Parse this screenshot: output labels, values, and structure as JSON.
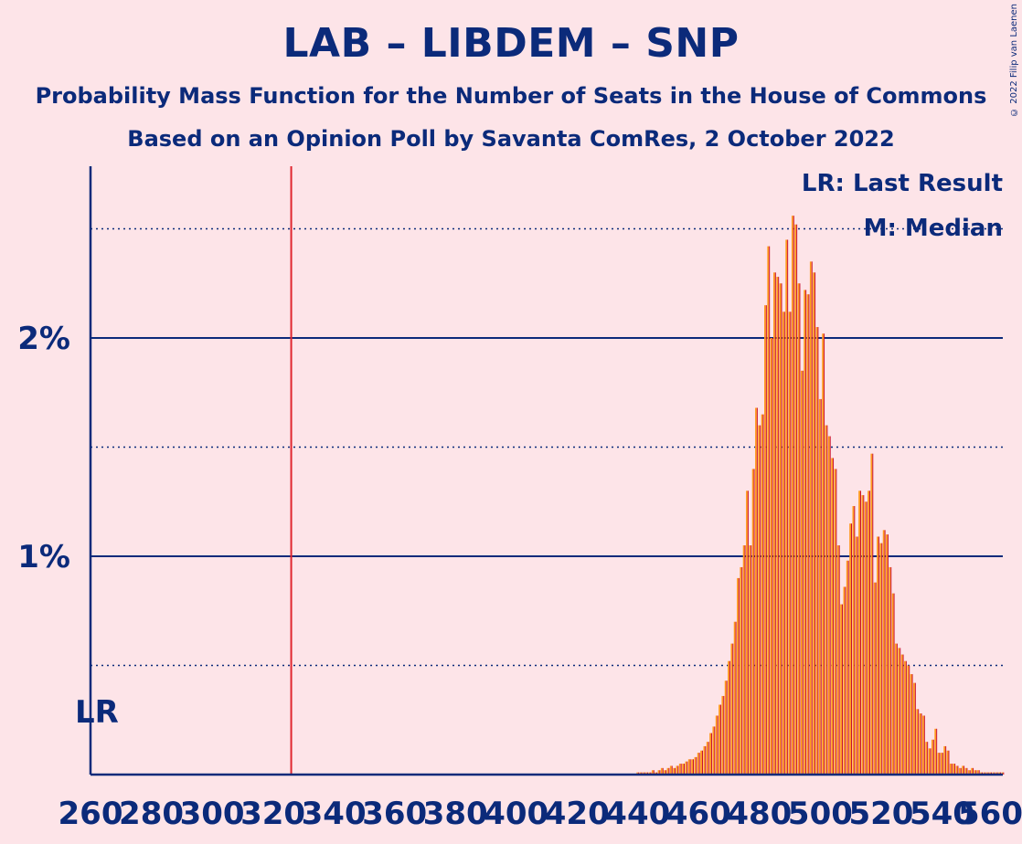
{
  "title": "LAB – LIBDEM – SNP",
  "subtitle": "Probability Mass Function for the Number of Seats in the House of Commons",
  "subtitle2": "Based on an Opinion Poll by Savanta ComRes, 2 October 2022",
  "copyright": "© 2022 Filip van Laenen",
  "colors": {
    "background": "#fde4e8",
    "text": "#0b2a7a",
    "bar_a": "#ff9a1e",
    "bar_b": "#c8102e",
    "last_result_line": "#e0262f",
    "grid": "#0b2a7a"
  },
  "chart_data": {
    "type": "bar",
    "xlabel": "",
    "ylabel": "",
    "xlim": [
      260,
      560
    ],
    "ylim": [
      0,
      2.8
    ],
    "x_ticks": [
      "260",
      "280",
      "300",
      "320",
      "340",
      "360",
      "380",
      "400",
      "420",
      "440",
      "460",
      "480",
      "500",
      "520",
      "540",
      "560"
    ],
    "y_ticks": [
      "1%",
      "2%"
    ],
    "y_tick_values": [
      1,
      2
    ],
    "dotted_gridlines": [
      0.5,
      1.5,
      2.5
    ],
    "last_result": 326,
    "last_result_label": "LR",
    "legend": [
      "LR: Last Result",
      "M: Median"
    ],
    "legend_position": "top-right",
    "x": [
      440,
      441,
      442,
      443,
      444,
      445,
      446,
      447,
      448,
      449,
      450,
      451,
      452,
      453,
      454,
      455,
      456,
      457,
      458,
      459,
      460,
      461,
      462,
      463,
      464,
      465,
      466,
      467,
      468,
      469,
      470,
      471,
      472,
      473,
      474,
      475,
      476,
      477,
      478,
      479,
      480,
      481,
      482,
      483,
      484,
      485,
      486,
      487,
      488,
      489,
      490,
      491,
      492,
      493,
      494,
      495,
      496,
      497,
      498,
      499,
      500,
      501,
      502,
      503,
      504,
      505,
      506,
      507,
      508,
      509,
      510,
      511,
      512,
      513,
      514,
      515,
      516,
      517,
      518,
      519,
      520,
      521,
      522,
      523,
      524,
      525,
      526,
      527,
      528,
      529,
      530,
      531,
      532,
      533,
      534,
      535,
      536,
      537,
      538,
      539,
      540,
      541,
      542,
      543,
      544,
      545,
      546,
      547,
      548,
      549,
      550,
      551,
      552,
      553,
      554,
      555,
      556,
      557,
      558,
      559,
      560
    ],
    "values": [
      0.01,
      0.01,
      0.01,
      0.01,
      0.01,
      0.02,
      0.01,
      0.02,
      0.03,
      0.02,
      0.03,
      0.04,
      0.03,
      0.04,
      0.05,
      0.05,
      0.06,
      0.07,
      0.07,
      0.08,
      0.1,
      0.11,
      0.13,
      0.15,
      0.19,
      0.22,
      0.27,
      0.32,
      0.36,
      0.43,
      0.52,
      0.6,
      0.7,
      0.9,
      0.95,
      1.05,
      1.3,
      1.05,
      1.4,
      1.68,
      1.6,
      1.65,
      2.15,
      2.42,
      2.0,
      2.3,
      2.28,
      2.25,
      2.12,
      2.45,
      2.12,
      2.56,
      2.52,
      2.25,
      1.85,
      2.22,
      2.2,
      2.35,
      2.3,
      2.05,
      1.72,
      2.02,
      1.6,
      1.55,
      1.45,
      1.4,
      1.05,
      0.78,
      0.86,
      0.98,
      1.15,
      1.23,
      1.09,
      1.3,
      1.28,
      1.25,
      1.3,
      1.47,
      0.88,
      1.09,
      1.06,
      1.12,
      1.1,
      0.95,
      0.83,
      0.6,
      0.58,
      0.55,
      0.52,
      0.5,
      0.46,
      0.42,
      0.3,
      0.28,
      0.27,
      0.15,
      0.12,
      0.16,
      0.21,
      0.1,
      0.1,
      0.13,
      0.11,
      0.05,
      0.05,
      0.04,
      0.03,
      0.04,
      0.03,
      0.02,
      0.03,
      0.02,
      0.02,
      0.01,
      0.01,
      0.01,
      0.01,
      0.01,
      0.01,
      0.01,
      0.01
    ]
  }
}
